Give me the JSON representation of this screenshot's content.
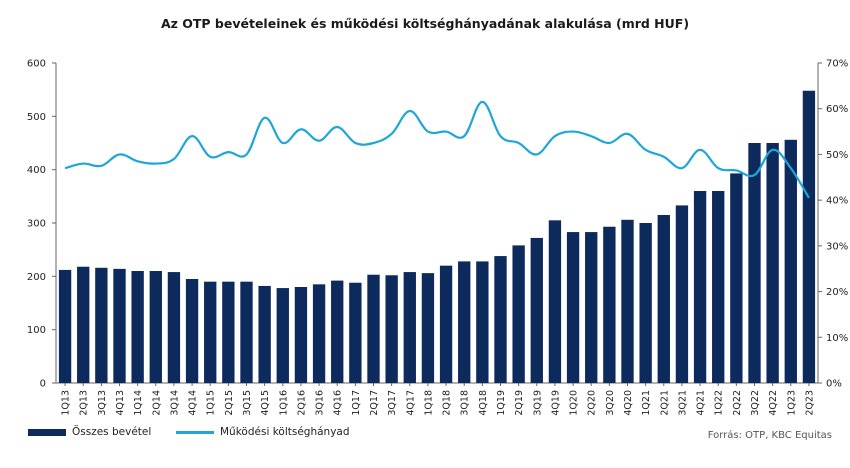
{
  "title": "Az OTP bevételeinek  és működési költséghányadának alakulása (mrd HUF)",
  "source": "Forrás: OTP, KBC Equitas",
  "colors": {
    "bars": "#0d2a5c",
    "line": "#1fa6d9",
    "axis": "#666666"
  },
  "chart_data": {
    "type": "bar",
    "categories": [
      "1Q13",
      "2Q13",
      "3Q13",
      "4Q13",
      "1Q14",
      "2Q14",
      "3Q14",
      "4Q14",
      "1Q15",
      "2Q15",
      "3Q15",
      "4Q15",
      "1Q16",
      "2Q16",
      "3Q16",
      "4Q16",
      "1Q17",
      "2Q17",
      "3Q17",
      "4Q17",
      "1Q18",
      "2Q18",
      "3Q18",
      "4Q18",
      "1Q19",
      "2Q19",
      "3Q19",
      "4Q19",
      "1Q20",
      "2Q20",
      "3Q20",
      "4Q20",
      "1Q21",
      "2Q21",
      "3Q21",
      "4Q21",
      "1Q22",
      "2Q22",
      "3Q22",
      "4Q22",
      "1Q23",
      "2Q23"
    ],
    "series": [
      {
        "name": "Összes bevétel",
        "type": "bar",
        "axis": "left",
        "values": [
          212,
          218,
          216,
          214,
          210,
          210,
          208,
          195,
          190,
          190,
          190,
          182,
          178,
          180,
          185,
          192,
          188,
          203,
          202,
          208,
          206,
          220,
          228,
          228,
          238,
          258,
          272,
          305,
          283,
          283,
          293,
          306,
          300,
          315,
          333,
          360,
          360,
          393,
          450,
          450,
          456,
          548
        ]
      },
      {
        "name": "Működési költséghányad",
        "type": "line",
        "axis": "right",
        "values": [
          0.47,
          0.48,
          0.475,
          0.5,
          0.485,
          0.48,
          0.49,
          0.54,
          0.495,
          0.505,
          0.5,
          0.58,
          0.525,
          0.555,
          0.53,
          0.56,
          0.525,
          0.525,
          0.545,
          0.595,
          0.55,
          0.55,
          0.54,
          0.615,
          0.54,
          0.525,
          0.5,
          0.54,
          0.55,
          0.54,
          0.525,
          0.545,
          0.51,
          0.495,
          0.47,
          0.51,
          0.47,
          0.465,
          0.455,
          0.51,
          0.47,
          0.405
        ]
      }
    ],
    "ylim": [
      0,
      600
    ],
    "yticks": [
      "0",
      "100",
      "200",
      "300",
      "400",
      "500",
      "600"
    ],
    "y2lim": [
      0,
      0.7
    ],
    "y2ticks": [
      "0%",
      "10%",
      "20%",
      "30%",
      "40%",
      "50%",
      "60%",
      "70%"
    ],
    "xlabel": "",
    "ylabel": "",
    "grid": false,
    "legend": "bottom-left"
  }
}
